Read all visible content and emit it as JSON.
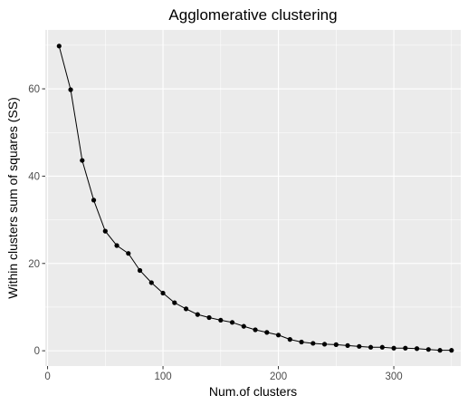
{
  "chart_data": {
    "type": "line",
    "title": "Agglomerative clustering",
    "xlabel": "Num.of clusters",
    "ylabel": "Within clusters sum of squares (SS)",
    "xlim": [
      -2,
      358
    ],
    "ylim": [
      -3.5,
      73.5
    ],
    "x_ticks": [
      0,
      100,
      200,
      300
    ],
    "y_ticks": [
      0,
      20,
      40,
      60
    ],
    "x_minor_ticks": [
      50,
      150,
      250,
      350
    ],
    "y_minor_ticks": [
      10,
      30,
      50,
      70
    ],
    "grid": true,
    "colors": {
      "panel": "#ebebeb",
      "grid": "#ffffff",
      "line": "#000000",
      "point": "#000000",
      "tick_label": "#4d4d4d"
    },
    "series": [
      {
        "x": [
          10,
          20,
          30,
          40,
          50,
          60,
          70,
          80,
          90,
          100,
          110,
          120,
          130,
          140,
          150,
          160,
          170,
          180,
          190,
          200,
          210,
          220,
          230,
          240,
          250,
          260,
          270,
          280,
          290,
          300,
          310,
          320,
          330,
          340,
          350
        ],
        "y": [
          69.8,
          59.8,
          43.6,
          34.5,
          27.4,
          24.1,
          22.3,
          18.4,
          15.6,
          13.2,
          11.0,
          9.6,
          8.3,
          7.6,
          7.0,
          6.5,
          5.6,
          4.8,
          4.2,
          3.6,
          2.6,
          2.0,
          1.7,
          1.5,
          1.4,
          1.2,
          1.0,
          0.8,
          0.8,
          0.6,
          0.6,
          0.5,
          0.3,
          0.1,
          0.1
        ]
      }
    ]
  }
}
